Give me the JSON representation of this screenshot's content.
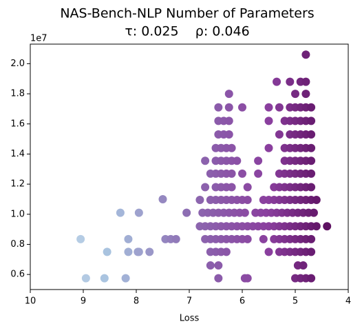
{
  "chart_data": {
    "type": "scatter",
    "title": "NAS-Bench-NLP Number of Parameters",
    "subtitle": "τ: 0.025    ρ: 0.046",
    "x_label": "Loss",
    "y_offset_label": "1e7",
    "xlim": [
      10,
      4
    ],
    "xticks": [
      10,
      9,
      8,
      7,
      6,
      5,
      4
    ],
    "ylim": [
      0.5,
      2.13
    ],
    "yticks": [
      0.6,
      0.8,
      {
        "value": 1,
        "label": "1.0"
      },
      1.2,
      1.4,
      1.6,
      1.8,
      {
        "value": 2,
        "label": "2.0"
      }
    ],
    "colormap": [
      "#ccdded",
      "#a8c2df",
      "#8c6bb1",
      "#8a3f9e",
      "#4d004b"
    ],
    "x": [
      9.05,
      8.95,
      8.6,
      8.55,
      8.3,
      8.2,
      8.15,
      8.15,
      7.95,
      7.97,
      7.95,
      7.75,
      7.5,
      7.45,
      7.35,
      7.25,
      7.05,
      6.45,
      5.95,
      5.9,
      5.0,
      4.9,
      4.8,
      4.7,
      6.6,
      6.45,
      4.95,
      4.85,
      6.6,
      6.5,
      6.4,
      6.3,
      5.5,
      5.3,
      5.2,
      5.1,
      5.0,
      4.9,
      4.8,
      4.7,
      6.7,
      6.6,
      6.5,
      6.4,
      6.3,
      6.2,
      6.1,
      6.0,
      5.9,
      5.6,
      5.4,
      5.3,
      5.2,
      5.1,
      5.0,
      4.9,
      4.8,
      4.7,
      6.8,
      6.7,
      6.6,
      6.5,
      6.4,
      6.3,
      6.2,
      6.1,
      6.0,
      5.9,
      5.8,
      5.7,
      5.6,
      5.5,
      5.4,
      5.3,
      5.2,
      5.1,
      5.0,
      4.9,
      4.8,
      4.7,
      4.6,
      4.4,
      6.75,
      6.65,
      6.55,
      6.45,
      6.35,
      6.25,
      6.15,
      6.05,
      5.95,
      5.75,
      5.65,
      5.55,
      5.45,
      5.35,
      5.25,
      5.15,
      5.05,
      4.95,
      4.85,
      4.75,
      4.65,
      6.8,
      6.6,
      6.5,
      6.4,
      6.3,
      6.2,
      6.1,
      6.0,
      5.9,
      5.6,
      5.5,
      5.4,
      5.3,
      5.2,
      5.1,
      5.0,
      4.9,
      4.8,
      4.7,
      4.6,
      6.7,
      6.5,
      6.4,
      6.3,
      6.2,
      5.9,
      5.4,
      5.3,
      5.2,
      5.1,
      5.0,
      4.9,
      4.8,
      4.7,
      6.6,
      6.5,
      6.4,
      6.3,
      6.2,
      6.0,
      5.7,
      5.3,
      5.2,
      5.1,
      5.0,
      4.9,
      4.8,
      4.7,
      6.7,
      6.5,
      6.4,
      6.3,
      6.2,
      6.1,
      5.7,
      5.2,
      5.1,
      5.0,
      4.9,
      4.8,
      4.7,
      6.5,
      6.4,
      6.3,
      6.2,
      5.5,
      5.2,
      5.1,
      5.0,
      4.9,
      4.8,
      4.7,
      6.45,
      6.35,
      6.25,
      5.3,
      5.1,
      5.0,
      4.9,
      4.8,
      4.7,
      6.45,
      6.35,
      6.25,
      5.5,
      5.2,
      5.1,
      5.0,
      4.9,
      4.8,
      4.7,
      6.45,
      6.25,
      6.0,
      5.5,
      5.3,
      5.1,
      5.0,
      4.9,
      4.8,
      4.7,
      6.25,
      5.0,
      4.8,
      5.35,
      5.1,
      4.9,
      4.8,
      4.8
    ],
    "y": [
      0.835,
      0.575,
      0.575,
      0.75,
      1.01,
      0.575,
      0.835,
      0.75,
      1.01,
      0.75,
      0.75,
      0.75,
      1.1,
      0.835,
      0.835,
      0.835,
      1.01,
      0.575,
      0.575,
      0.575,
      0.575,
      0.575,
      0.575,
      0.575,
      0.66,
      0.66,
      0.66,
      0.66,
      0.75,
      0.75,
      0.75,
      0.75,
      0.75,
      0.75,
      0.75,
      0.75,
      0.75,
      0.75,
      0.75,
      0.75,
      0.835,
      0.835,
      0.835,
      0.835,
      0.835,
      0.835,
      0.835,
      0.835,
      0.835,
      0.835,
      0.835,
      0.835,
      0.835,
      0.835,
      0.835,
      0.835,
      0.835,
      0.835,
      0.92,
      0.92,
      0.92,
      0.92,
      0.92,
      0.92,
      0.92,
      0.92,
      0.92,
      0.92,
      0.92,
      0.92,
      0.92,
      0.92,
      0.92,
      0.92,
      0.92,
      0.92,
      0.92,
      0.92,
      0.92,
      0.92,
      0.92,
      0.92,
      1.01,
      1.01,
      1.01,
      1.01,
      1.01,
      1.01,
      1.01,
      1.01,
      1.01,
      1.01,
      1.01,
      1.01,
      1.01,
      1.01,
      1.01,
      1.01,
      1.01,
      1.01,
      1.01,
      1.01,
      1.01,
      1.095,
      1.095,
      1.095,
      1.095,
      1.095,
      1.095,
      1.095,
      1.095,
      1.095,
      1.095,
      1.095,
      1.095,
      1.095,
      1.095,
      1.095,
      1.095,
      1.095,
      1.095,
      1.095,
      1.095,
      1.18,
      1.18,
      1.18,
      1.18,
      1.18,
      1.18,
      1.18,
      1.18,
      1.18,
      1.18,
      1.18,
      1.18,
      1.18,
      1.18,
      1.27,
      1.27,
      1.27,
      1.27,
      1.27,
      1.27,
      1.27,
      1.27,
      1.27,
      1.27,
      1.27,
      1.27,
      1.27,
      1.27,
      1.355,
      1.355,
      1.355,
      1.355,
      1.355,
      1.355,
      1.355,
      1.355,
      1.355,
      1.355,
      1.355,
      1.355,
      1.355,
      1.44,
      1.44,
      1.44,
      1.44,
      1.44,
      1.44,
      1.44,
      1.44,
      1.44,
      1.44,
      1.44,
      1.53,
      1.53,
      1.53,
      1.53,
      1.53,
      1.53,
      1.53,
      1.53,
      1.53,
      1.62,
      1.62,
      1.62,
      1.62,
      1.62,
      1.62,
      1.62,
      1.62,
      1.62,
      1.62,
      1.71,
      1.71,
      1.71,
      1.71,
      1.71,
      1.71,
      1.71,
      1.71,
      1.71,
      1.71,
      1.8,
      1.8,
      1.8,
      1.88,
      1.88,
      1.88,
      1.88,
      2.06
    ]
  }
}
